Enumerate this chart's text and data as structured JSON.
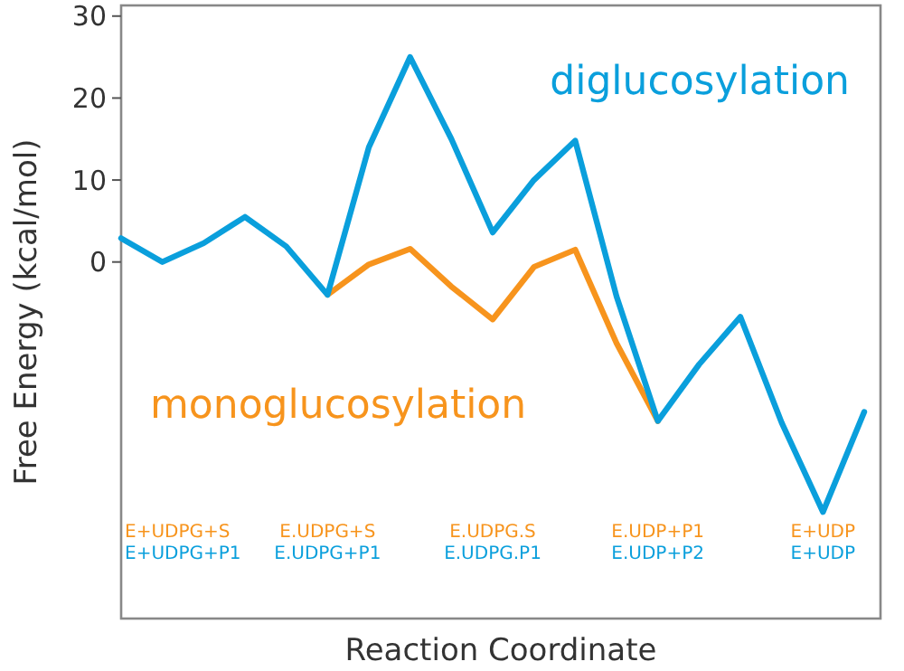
{
  "chart_data": {
    "type": "line",
    "xlabel": "Reaction Coordinate",
    "ylabel": "Free Energy (kcal/mol)",
    "categories": [
      null,
      null,
      null,
      null,
      null,
      null,
      null,
      null,
      null,
      null,
      null,
      null,
      null,
      null,
      null,
      null,
      null,
      null,
      null
    ],
    "ylim": [
      -43.5,
      31.3
    ],
    "yticks": [
      0,
      10,
      20,
      30
    ],
    "tick_labels": "y",
    "grid": false,
    "marker": "none",
    "line_style": "solid",
    "series": [
      {
        "name": "monoglucosylation",
        "color": "#f7941d",
        "values": [
          null,
          null,
          null,
          null,
          null,
          -4,
          -0.3,
          1.6,
          -3,
          -7,
          -0.6,
          1.5,
          -9.9,
          -19.4,
          null,
          null,
          null,
          null,
          null
        ]
      },
      {
        "name": "diglucosylation",
        "color": "#0a9fdc",
        "values": [
          2.9,
          0,
          2.3,
          5.5,
          1.9,
          -4,
          14,
          25,
          15,
          3.6,
          10,
          14.8,
          -4.2,
          -19.4,
          -12.5,
          -6.7,
          -19.6,
          -30.5,
          -18.3
        ]
      }
    ],
    "annotations": [
      "E+UDPG+S",
      "E+UDPG+P1",
      "E.UDPG+S",
      "E.UDPG+P1",
      "E.UDPG.S",
      "E.UDPG.P1",
      "E.UDP+P1",
      "E.UDP+P2",
      "E+UDP",
      "E+UDP"
    ]
  }
}
